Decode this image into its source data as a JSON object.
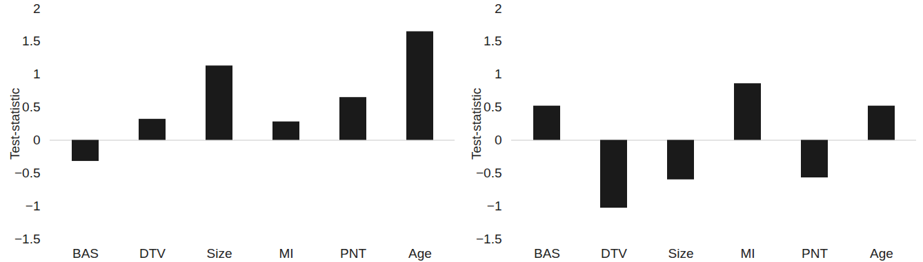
{
  "chart_data": [
    {
      "type": "bar",
      "y_label": "Test-statistic",
      "categories": [
        "BAS",
        "DTV",
        "Size",
        "MI",
        "PNT",
        "Age"
      ],
      "values": [
        -0.32,
        0.32,
        1.13,
        0.28,
        0.65,
        1.65
      ],
      "color": "#1a1a1a",
      "ylim": [
        -1.5,
        2
      ],
      "yticks": [
        -1.5,
        -1,
        -0.5,
        0,
        0.5,
        1,
        1.5,
        2
      ],
      "grid": false
    },
    {
      "type": "bar",
      "y_label": "Test-statistic",
      "categories": [
        "BAS",
        "DTV",
        "Size",
        "MI",
        "PNT",
        "Age"
      ],
      "values": [
        0.52,
        -1.03,
        -0.6,
        0.86,
        -0.57,
        0.52
      ],
      "color": "#1a1a1a",
      "ylim": [
        -1.5,
        2
      ],
      "yticks": [
        -1.5,
        -1,
        -0.5,
        0,
        0.5,
        1,
        1.5,
        2
      ],
      "grid": false
    }
  ]
}
